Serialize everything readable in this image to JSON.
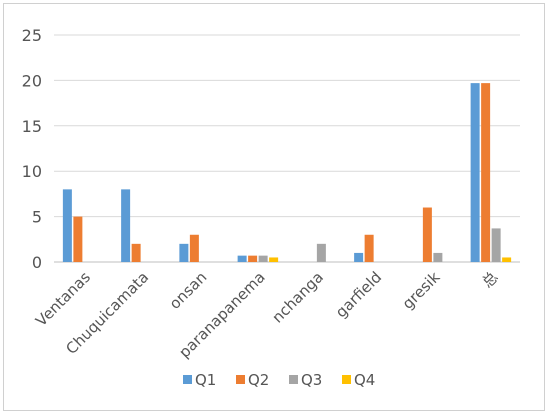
{
  "chart_data": {
    "type": "bar",
    "categories": [
      "Ventanas",
      "Chuquicamata",
      "onsan",
      "paranapanema",
      "nchanga",
      "garfield",
      "gresik",
      "总"
    ],
    "series": [
      {
        "name": "Q1",
        "color": "#5B9BD5",
        "values": [
          8,
          8,
          2,
          0.7,
          0,
          1,
          0,
          19.7
        ]
      },
      {
        "name": "Q2",
        "color": "#ED7D31",
        "values": [
          5,
          2,
          3,
          0.7,
          0,
          3,
          6,
          19.7
        ]
      },
      {
        "name": "Q3",
        "color": "#A5A5A5",
        "values": [
          0,
          0,
          0,
          0.7,
          2,
          0,
          1,
          3.7
        ]
      },
      {
        "name": "Q4",
        "color": "#FFC000",
        "values": [
          0,
          0,
          0,
          0.5,
          0,
          0,
          0,
          0.5
        ]
      }
    ],
    "ylim": [
      0,
      25
    ],
    "yticks": [
      0,
      5,
      10,
      15,
      20,
      25
    ],
    "grid": true,
    "legend_position": "bottom"
  }
}
